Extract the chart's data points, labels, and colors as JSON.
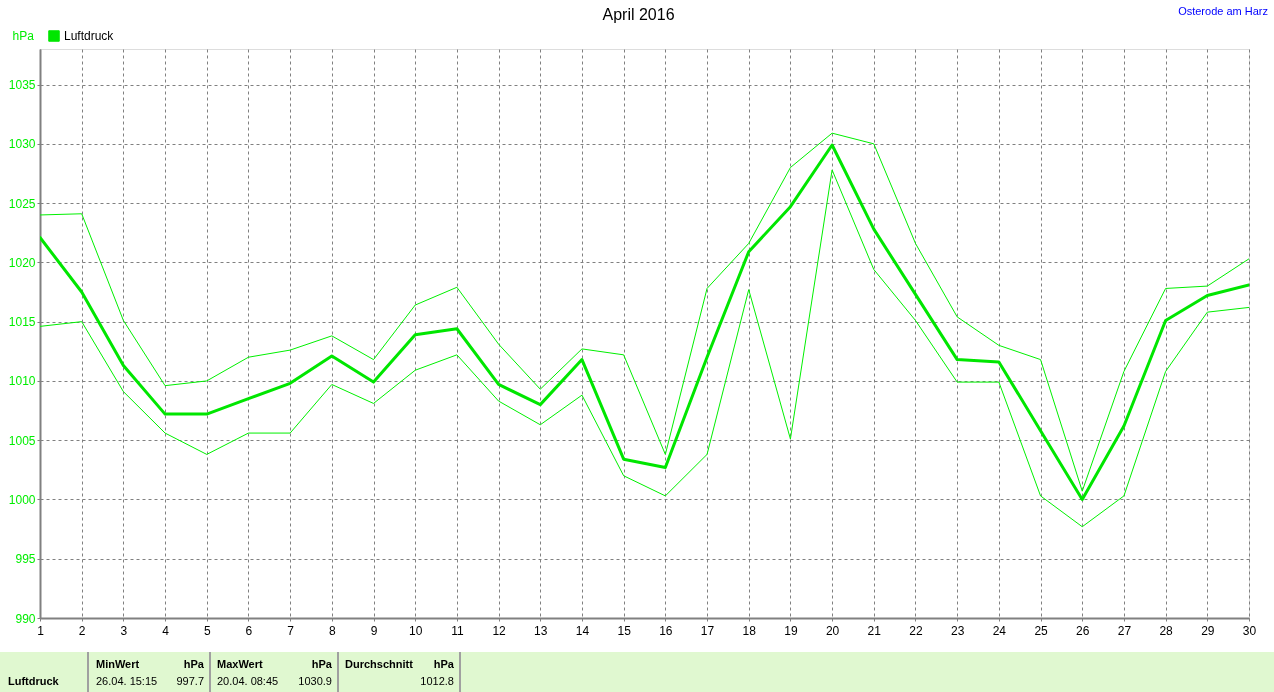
{
  "chart_data": {
    "type": "line",
    "title": "April 2016",
    "ylabel": "hPa",
    "x": [
      1,
      2,
      3,
      4,
      5,
      6,
      7,
      8,
      9,
      10,
      11,
      12,
      13,
      14,
      15,
      16,
      17,
      18,
      19,
      20,
      21,
      22,
      23,
      24,
      25,
      26,
      27,
      28,
      29,
      30
    ],
    "xlim": [
      1,
      30
    ],
    "xticks": [
      1,
      2,
      3,
      4,
      5,
      6,
      7,
      8,
      9,
      10,
      11,
      12,
      13,
      14,
      15,
      16,
      17,
      18,
      19,
      20,
      21,
      22,
      23,
      24,
      25,
      26,
      27,
      28,
      29,
      30
    ],
    "ylim": [
      990,
      1038
    ],
    "yticks": [
      990,
      995,
      1000,
      1005,
      1010,
      1015,
      1020,
      1025,
      1030,
      1035
    ],
    "series": [
      {
        "name": "Luftdruck",
        "color": "#00e600",
        "values": [
          1022.1,
          1017.5,
          1011.3,
          1007.2,
          1007.2,
          1008.5,
          1009.8,
          1012.1,
          1009.9,
          1013.9,
          1014.4,
          1009.7,
          1008.0,
          1011.8,
          1003.4,
          1002.7,
          1012.0,
          1020.9,
          1024.7,
          1029.9,
          1022.8,
          1017.3,
          1011.8,
          1011.6,
          1005.8,
          1000.0,
          1006.2,
          1015.1,
          1017.2,
          1018.1
        ]
      },
      {
        "color": "#00f000",
        "values": [
          1024.0,
          1024.1,
          1015.1,
          1009.6,
          1010.0,
          1012.0,
          1012.6,
          1013.8,
          1011.8,
          1016.4,
          1017.9,
          1013.1,
          1009.3,
          1012.7,
          1012.2,
          1003.8,
          1017.8,
          1021.6,
          1028.0,
          1030.9,
          1030.0,
          1021.6,
          1015.4,
          1013.0,
          1011.8,
          1000.7,
          1010.8,
          1017.8,
          1018.0,
          1020.3
        ]
      },
      {
        "color": "#00f000",
        "values": [
          1014.6,
          1015.0,
          1009.1,
          1005.6,
          1003.8,
          1005.6,
          1005.6,
          1009.7,
          1008.1,
          1010.9,
          1012.2,
          1008.3,
          1006.3,
          1008.8,
          1002.0,
          1000.3,
          1003.8,
          1017.7,
          1005.1,
          1027.8,
          1019.4,
          1015.1,
          1009.9,
          1009.9,
          1000.3,
          997.7,
          1000.3,
          1010.8,
          1015.8,
          1016.2
        ]
      }
    ],
    "grid": true,
    "legend": "top left",
    "line_style": "solid",
    "annotations": [
      "Osterode am Harz",
      "Luftdruck",
      "MinWert",
      "hPa",
      "26.04. 15:15",
      "997.7",
      "MaxWert",
      "hPa",
      "20.04. 08:45",
      "1030.9",
      "Durchschnitt",
      "hPa",
      "1012.8"
    ]
  }
}
